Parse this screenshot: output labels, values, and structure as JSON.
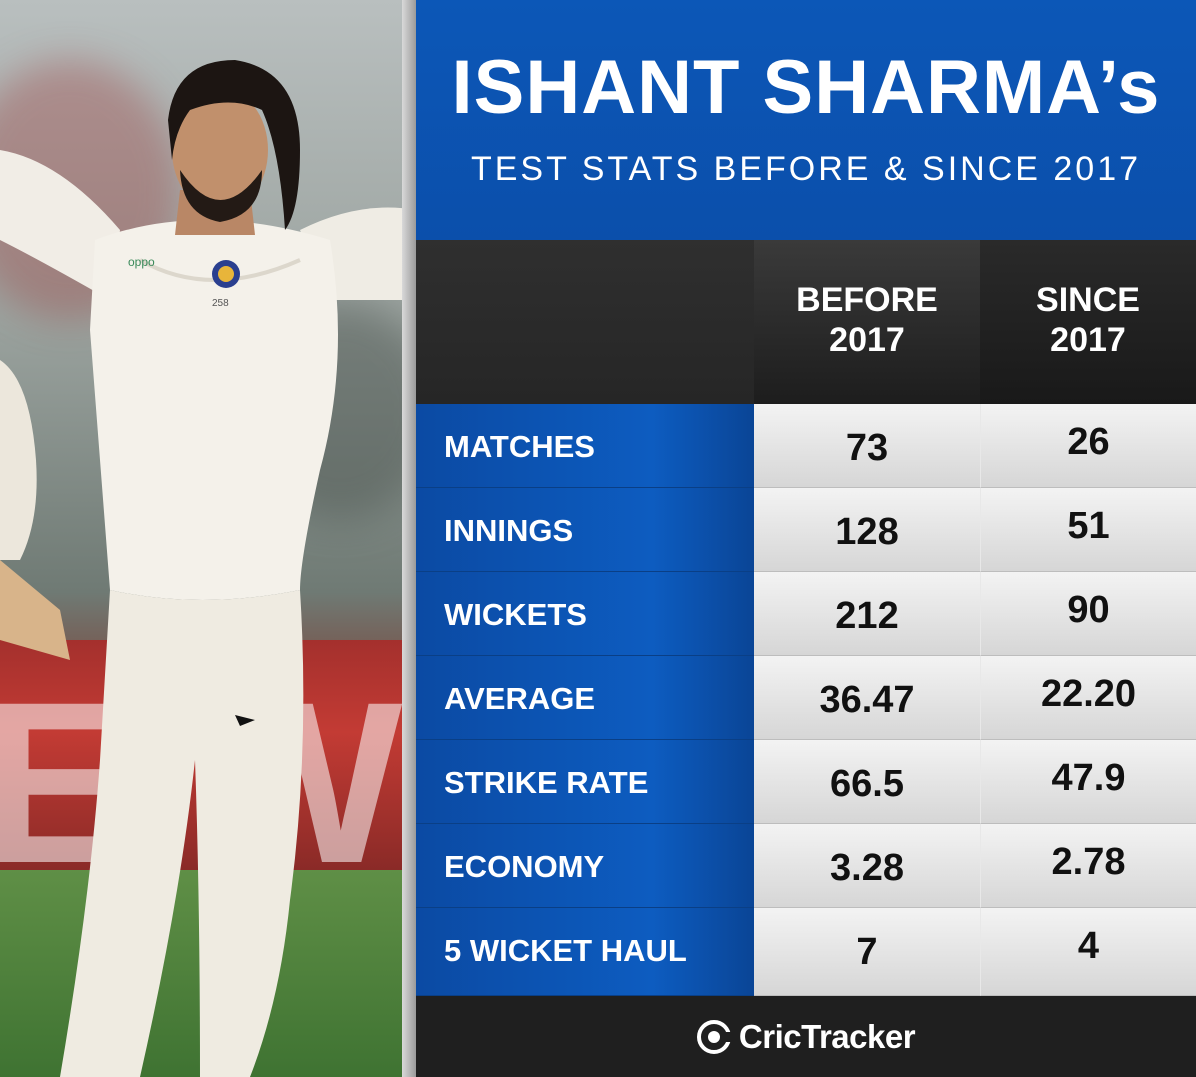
{
  "header": {
    "title": "ISHANT SHARMA’s",
    "subtitle": "TEST STATS BEFORE & SINCE 2017"
  },
  "table": {
    "columns": [
      {
        "line1": "BEFORE",
        "line2": "2017"
      },
      {
        "line1": "SINCE",
        "line2": "2017"
      }
    ],
    "rows": [
      {
        "label": "MATCHES",
        "before": "73",
        "since": "26"
      },
      {
        "label": "INNINGS",
        "before": "128",
        "since": "51"
      },
      {
        "label": "WICKETS",
        "before": "212",
        "since": "90"
      },
      {
        "label": "AVERAGE",
        "before": "36.47",
        "since": "22.20"
      },
      {
        "label": "STRIKE RATE",
        "before": "66.5",
        "since": "47.9"
      },
      {
        "label": "ECONOMY",
        "before": "3.28",
        "since": "2.78"
      },
      {
        "label": "5 WICKET HAUL",
        "before": "7",
        "since": "4"
      }
    ]
  },
  "photo": {
    "board_text": "E.W",
    "shirt_number": "258",
    "sponsor": "OPPO"
  },
  "footer": {
    "brand": "CricTracker",
    "brand_icon": "crictracker-logo-icon"
  },
  "colors": {
    "header_blue": "#0c57b7",
    "label_blue": "#0d5cc0",
    "dark_header": "#2b2b2b",
    "cell_grey": "#e6e6e6",
    "footer": "#1f1f1f"
  }
}
